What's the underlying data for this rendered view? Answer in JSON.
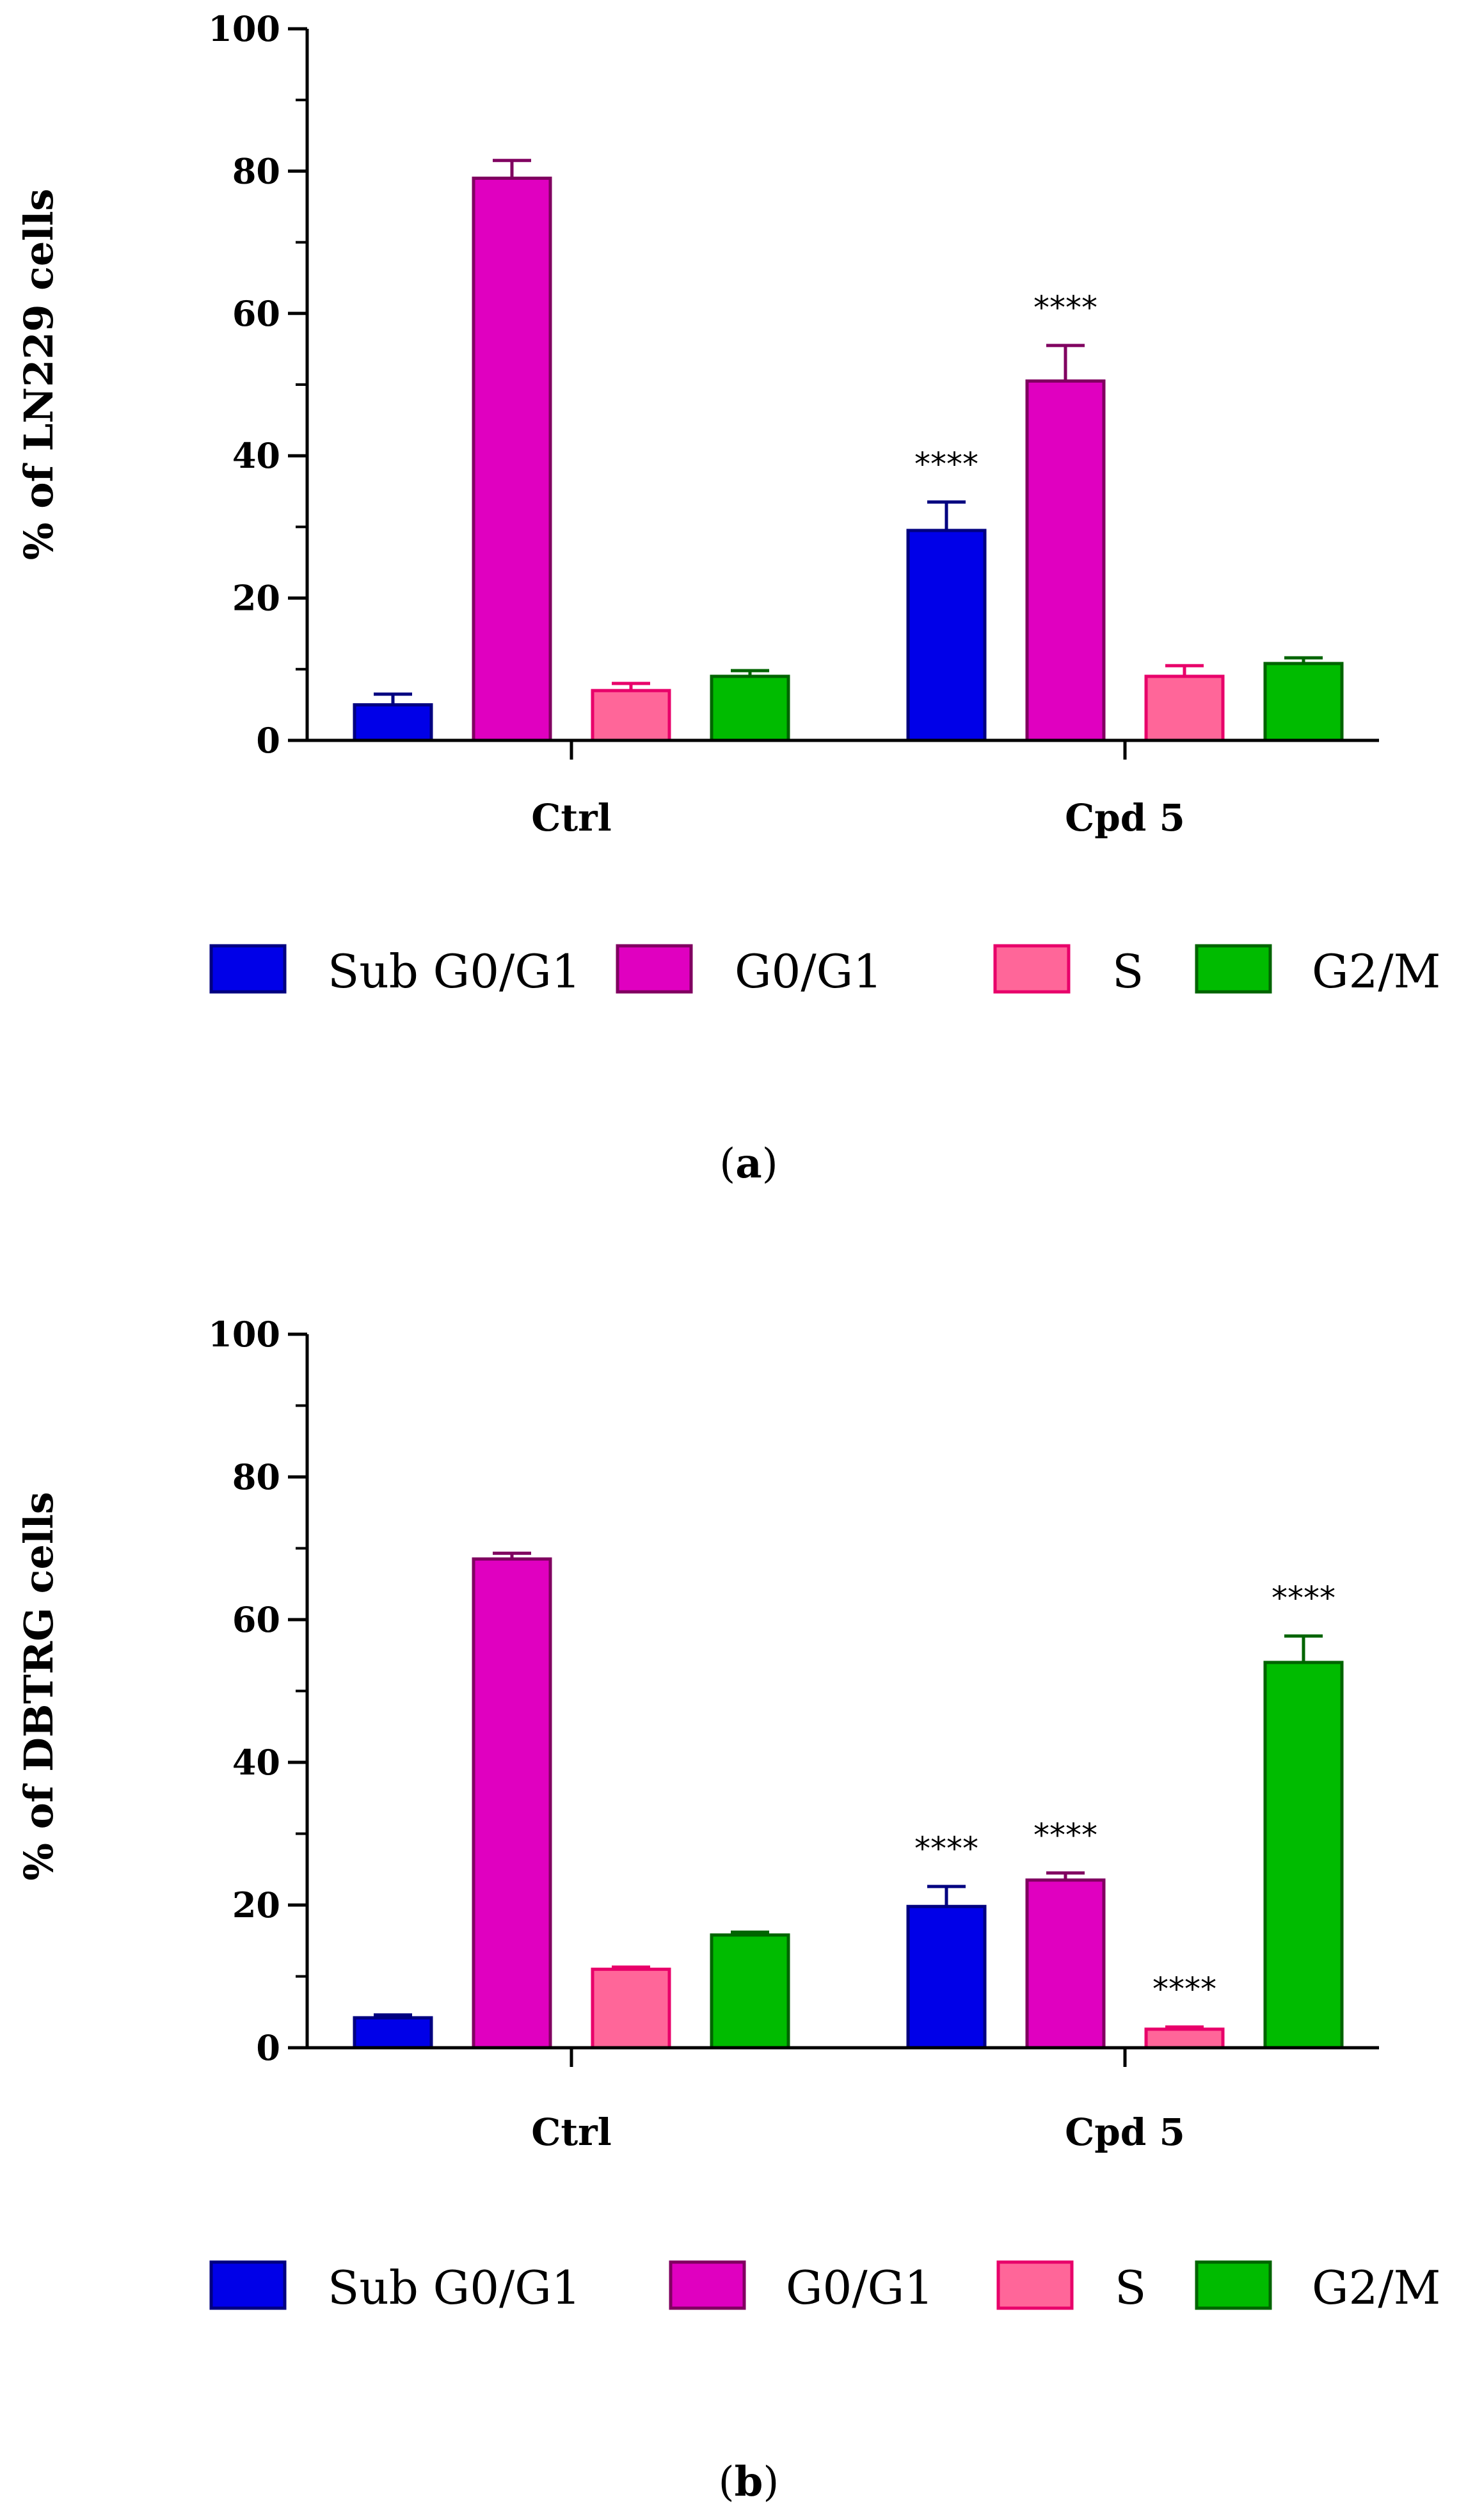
{
  "chart_data": [
    {
      "type": "bar",
      "panel": "a",
      "ylabel": "% of LN229 cells",
      "ylim": [
        0,
        100
      ],
      "yticks": [
        "0",
        "20",
        "40",
        "60",
        "80",
        "100"
      ],
      "categories": [
        "Ctrl",
        "Cpd 5"
      ],
      "series": [
        {
          "name": "Sub G0/G1",
          "values": [
            5.0,
            29.5
          ],
          "errors": [
            1.5,
            4.0
          ],
          "color": "#0000e8",
          "stroke": "#000080",
          "sig": [
            "",
            "****"
          ]
        },
        {
          "name": "G0/G1",
          "values": [
            79.0,
            50.5
          ],
          "errors": [
            2.5,
            5.0
          ],
          "color": "#e000c0",
          "stroke": "#800060",
          "sig": [
            "",
            "****"
          ]
        },
        {
          "name": "S",
          "values": [
            7.0,
            9.0
          ],
          "errors": [
            1.0,
            1.5
          ],
          "color": "#ff6699",
          "stroke": "#e8006a",
          "sig": [
            "",
            ""
          ]
        },
        {
          "name": "G2/M",
          "values": [
            9.0,
            10.8
          ],
          "errors": [
            0.8,
            0.8
          ],
          "color": "#00bb00",
          "stroke": "#006400",
          "sig": [
            "",
            ""
          ]
        }
      ],
      "legend": [
        "Sub G0/G1",
        "G0/G1",
        "S",
        "G2/M"
      ],
      "legend_position": "bottom",
      "caption_letter": "a"
    },
    {
      "type": "bar",
      "panel": "b",
      "ylabel": "% of DBTRG cells",
      "ylim": [
        0,
        100
      ],
      "yticks": [
        "0",
        "20",
        "40",
        "60",
        "80",
        "100"
      ],
      "categories": [
        "Ctrl",
        "Cpd 5"
      ],
      "series": [
        {
          "name": "Sub G0/G1",
          "values": [
            4.2,
            19.8
          ],
          "errors": [
            0.4,
            2.8
          ],
          "color": "#0000e8",
          "stroke": "#000080",
          "sig": [
            "",
            "****"
          ]
        },
        {
          "name": "G0/G1",
          "values": [
            68.5,
            23.5
          ],
          "errors": [
            0.8,
            1.0
          ],
          "color": "#e000c0",
          "stroke": "#800060",
          "sig": [
            "",
            "****"
          ]
        },
        {
          "name": "S",
          "values": [
            11.0,
            2.6
          ],
          "errors": [
            0.3,
            0.3
          ],
          "color": "#ff6699",
          "stroke": "#e8006a",
          "sig": [
            "",
            "****"
          ]
        },
        {
          "name": "G2/M",
          "values": [
            15.8,
            54.0
          ],
          "errors": [
            0.4,
            3.7
          ],
          "color": "#00bb00",
          "stroke": "#006400",
          "sig": [
            "",
            "****"
          ]
        }
      ],
      "legend": [
        "Sub G0/G1",
        "G0/G1",
        "S",
        "G2/M"
      ],
      "legend_position": "bottom",
      "caption_letter": "b"
    }
  ]
}
